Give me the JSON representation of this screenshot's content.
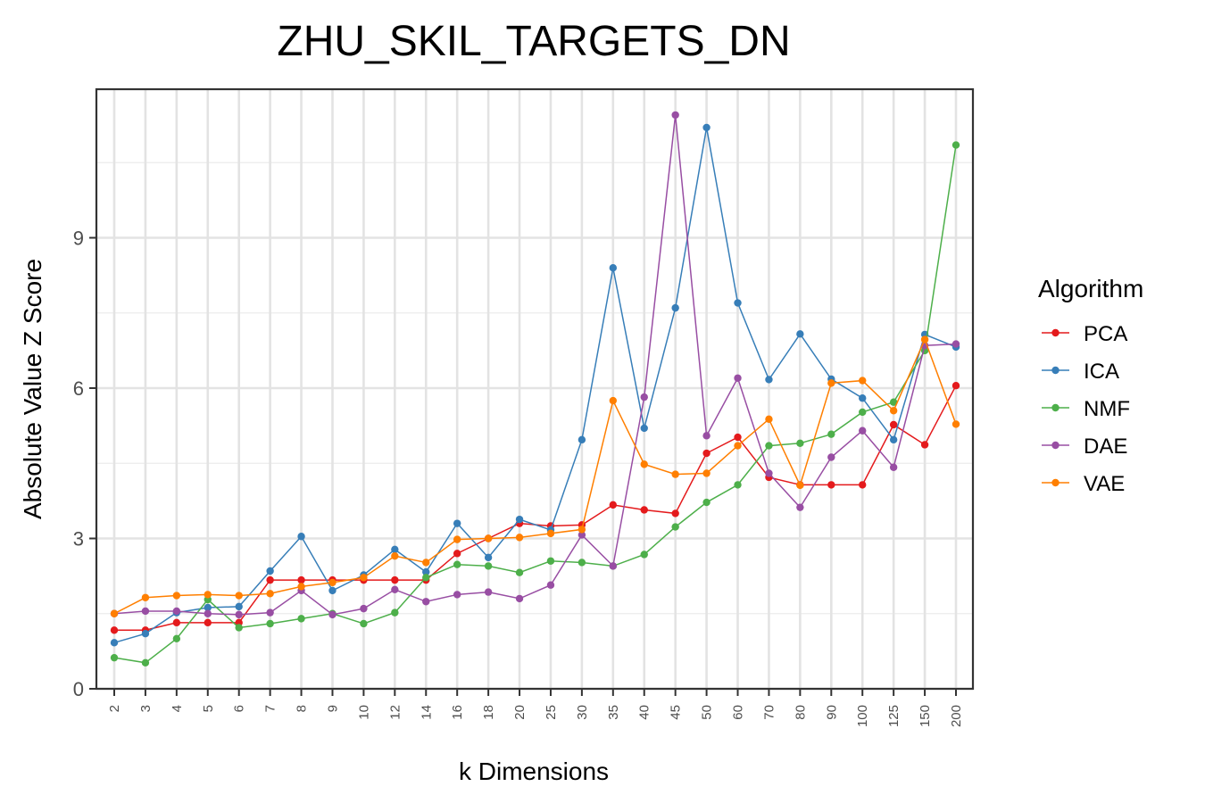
{
  "chart_data": {
    "type": "line",
    "title": "ZHU_SKIL_TARGETS_DN",
    "xlabel": "k Dimensions",
    "ylabel": "Absolute Value Z Score",
    "categories": [
      "2",
      "3",
      "4",
      "5",
      "6",
      "7",
      "8",
      "9",
      "10",
      "12",
      "14",
      "16",
      "18",
      "20",
      "25",
      "30",
      "35",
      "40",
      "45",
      "50",
      "60",
      "70",
      "80",
      "90",
      "100",
      "125",
      "150",
      "200"
    ],
    "ylim": [
      0,
      12
    ],
    "yticks": [
      0,
      3,
      6,
      9
    ],
    "grid": true,
    "legend": {
      "title": "Algorithm",
      "placement": "right"
    },
    "series": [
      {
        "name": "PCA",
        "color": "#e41a1c",
        "values": [
          1.17,
          1.17,
          1.32,
          1.32,
          1.32,
          2.17,
          2.17,
          2.17,
          2.17,
          2.17,
          2.17,
          2.7,
          3.0,
          3.3,
          3.25,
          3.27,
          3.67,
          3.57,
          3.5,
          4.7,
          5.02,
          4.22,
          4.07,
          4.07,
          4.07,
          5.27,
          4.87,
          6.05
        ]
      },
      {
        "name": "ICA",
        "color": "#377eb8",
        "values": [
          0.92,
          1.1,
          1.52,
          1.62,
          1.64,
          2.35,
          3.04,
          1.96,
          2.27,
          2.78,
          2.33,
          3.3,
          2.62,
          3.38,
          3.17,
          4.97,
          8.4,
          5.2,
          7.6,
          11.2,
          7.7,
          6.17,
          7.08,
          6.18,
          5.8,
          4.97,
          7.07,
          6.82
        ]
      },
      {
        "name": "NMF",
        "color": "#4daf4a",
        "values": [
          0.62,
          0.52,
          1.0,
          1.78,
          1.22,
          1.3,
          1.4,
          1.5,
          1.3,
          1.52,
          2.22,
          2.48,
          2.45,
          2.32,
          2.55,
          2.52,
          2.45,
          2.68,
          3.23,
          3.72,
          4.07,
          4.85,
          4.9,
          5.08,
          5.52,
          5.72,
          6.75,
          10.85
        ]
      },
      {
        "name": "DAE",
        "color": "#984ea3",
        "values": [
          1.5,
          1.55,
          1.55,
          1.5,
          1.48,
          1.52,
          1.96,
          1.48,
          1.6,
          1.98,
          1.74,
          1.88,
          1.93,
          1.8,
          2.07,
          3.07,
          2.45,
          5.82,
          11.45,
          5.05,
          6.2,
          4.3,
          3.62,
          4.62,
          5.15,
          4.42,
          6.85,
          6.88
        ]
      },
      {
        "name": "VAE",
        "color": "#ff7f00",
        "values": [
          1.5,
          1.82,
          1.86,
          1.88,
          1.86,
          1.9,
          2.04,
          2.12,
          2.22,
          2.65,
          2.52,
          2.98,
          3.0,
          3.02,
          3.1,
          3.18,
          5.75,
          4.48,
          4.28,
          4.3,
          4.85,
          5.38,
          4.06,
          6.1,
          6.15,
          5.55,
          6.97,
          5.28
        ]
      }
    ]
  }
}
